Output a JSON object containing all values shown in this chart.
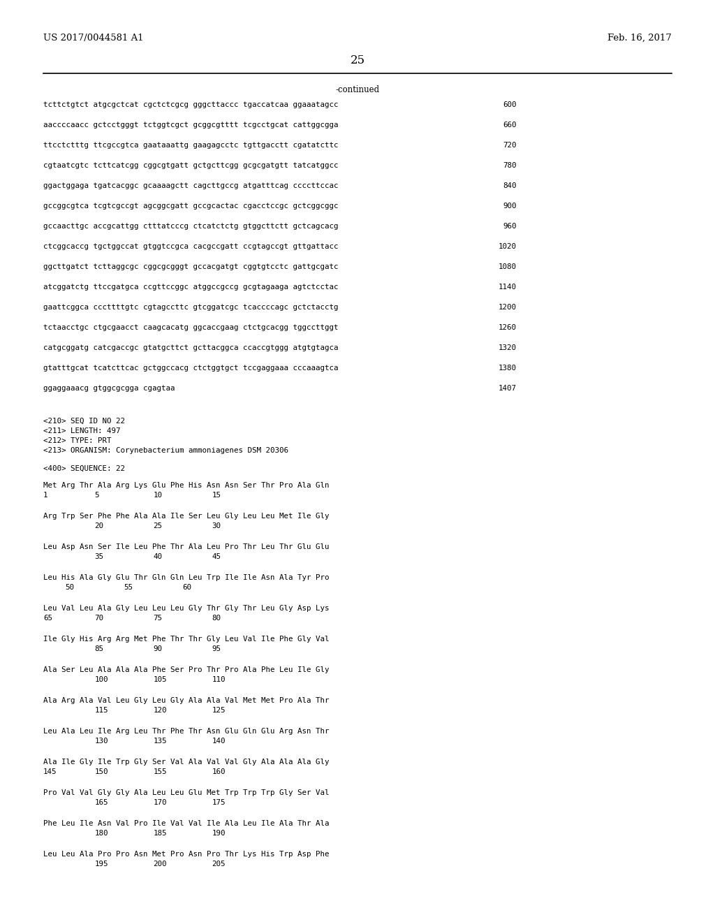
{
  "header_left": "US 2017/0044581 A1",
  "header_right": "Feb. 16, 2017",
  "page_number": "25",
  "continued_label": "-continued",
  "background_color": "#ffffff",
  "text_color": "#000000",
  "dna_lines": [
    [
      "tcttctgtct atgcgctcat cgctctcgcg gggcttaccc tgaccatcaa ggaaatagcc",
      "600"
    ],
    [
      "aaccccaacc gctcctgggt tctggtcgct gcggcgtttt tcgcctgcat cattggcgga",
      "660"
    ],
    [
      "ttcctctttg ttcgccgtca gaataaattg gaagagcctc tgttgacctt cgatatcttc",
      "720"
    ],
    [
      "cgtaatcgtc tcttcatcgg cggcgtgatt gctgcttcgg gcgcgatgtt tatcatggcc",
      "780"
    ],
    [
      "ggactggaga tgatcacggc gcaaaagctt cagcttgccg atgatttcag ccccttccac",
      "840"
    ],
    [
      "gccggcgtca tcgtcgccgt agcggcgatt gccgcactac cgacctccgc gctcggcggc",
      "900"
    ],
    [
      "gccaacttgc accgcattgg ctttatcccg ctcatctctg gtggcttctt gctcagcacg",
      "960"
    ],
    [
      "ctcggcaccg tgctggccat gtggtccgca cacgccgatt ccgtagccgt gttgattacc",
      "1020"
    ],
    [
      "ggcttgatct tcttaggcgc cggcgcgggt gccacgatgt cggtgtcctc gattgcgatc",
      "1080"
    ],
    [
      "atcggatctg ttccgatgca ccgttccggc atggccgccg gcgtagaaga agtctcctac",
      "1140"
    ],
    [
      "gaattcggca cccttttgtc cgtagccttc gtcggatcgc tcaccccagc gctctacctg",
      "1200"
    ],
    [
      "tctaacctgc ctgcgaacct caagcacatg ggcaccgaag ctctgcacgg tggccttggt",
      "1260"
    ],
    [
      "catgcggatg catcgaccgc gtatgcttct gcttacggca ccaccgtggg atgtgtagca",
      "1320"
    ],
    [
      "gtatttgcat tcatcttcac gctggccacg ctctggtgct tccgaggaaa cccaaagtca",
      "1380"
    ],
    [
      "ggaggaaacg gtggcgcgga cgagtaa",
      "1407"
    ]
  ],
  "seq_info": [
    "<210> SEQ ID NO 22",
    "<211> LENGTH: 497",
    "<212> TYPE: PRT",
    "<213> ORGANISM: Corynebacterium ammoniagenes DSM 20306"
  ],
  "seq_label": "<400> SEQUENCE: 22",
  "protein_data": [
    {
      "aa": "Met Arg Thr Ala Arg Lys Glu Phe His Asn Asn Ser Thr Pro Ala Gln",
      "nums": [
        [
          "1",
          0
        ],
        [
          "5",
          14
        ],
        [
          "10",
          30
        ],
        [
          "15",
          46
        ]
      ]
    },
    {
      "aa": "Arg Trp Ser Phe Phe Ala Ala Ile Ser Leu Gly Leu Leu Met Ile Gly",
      "nums": [
        [
          "20",
          14
        ],
        [
          "25",
          30
        ],
        [
          "30",
          46
        ]
      ]
    },
    {
      "aa": "Leu Asp Asn Ser Ile Leu Phe Thr Ala Leu Pro Thr Leu Thr Glu Glu",
      "nums": [
        [
          "35",
          14
        ],
        [
          "40",
          30
        ],
        [
          "45",
          46
        ]
      ]
    },
    {
      "aa": "Leu His Ala Gly Glu Thr Gln Gln Leu Trp Ile Ile Asn Ala Tyr Pro",
      "nums": [
        [
          "50",
          6
        ],
        [
          "55",
          22
        ],
        [
          "60",
          38
        ]
      ]
    },
    {
      "aa": "Leu Val Leu Ala Gly Leu Leu Leu Gly Thr Gly Thr Leu Gly Asp Lys",
      "nums": [
        [
          "65",
          0
        ],
        [
          "70",
          14
        ],
        [
          "75",
          30
        ],
        [
          "80",
          46
        ]
      ]
    },
    {
      "aa": "Ile Gly His Arg Arg Met Phe Thr Thr Gly Leu Val Ile Phe Gly Val",
      "nums": [
        [
          "85",
          14
        ],
        [
          "90",
          30
        ],
        [
          "95",
          46
        ]
      ]
    },
    {
      "aa": "Ala Ser Leu Ala Ala Ala Phe Ser Pro Thr Pro Ala Phe Leu Ile Gly",
      "nums": [
        [
          "100",
          14
        ],
        [
          "105",
          30
        ],
        [
          "110",
          46
        ]
      ]
    },
    {
      "aa": "Ala Arg Ala Val Leu Gly Leu Gly Ala Ala Val Met Met Pro Ala Thr",
      "nums": [
        [
          "115",
          14
        ],
        [
          "120",
          30
        ],
        [
          "125",
          46
        ]
      ]
    },
    {
      "aa": "Leu Ala Leu Ile Arg Leu Thr Phe Thr Asn Glu Gln Glu Arg Asn Thr",
      "nums": [
        [
          "130",
          14
        ],
        [
          "135",
          30
        ],
        [
          "140",
          46
        ]
      ]
    },
    {
      "aa": "Ala Ile Gly Ile Trp Gly Ser Val Ala Val Val Gly Ala Ala Ala Gly",
      "nums": [
        [
          "145",
          0
        ],
        [
          "150",
          14
        ],
        [
          "155",
          30
        ],
        [
          "160",
          46
        ]
      ]
    },
    {
      "aa": "Pro Val Val Gly Gly Ala Leu Leu Glu Met Trp Trp Trp Gly Ser Val",
      "nums": [
        [
          "165",
          14
        ],
        [
          "170",
          30
        ],
        [
          "175",
          46
        ]
      ]
    },
    {
      "aa": "Phe Leu Ile Asn Val Pro Ile Val Val Ile Ala Leu Ile Ala Thr Ala",
      "nums": [
        [
          "180",
          14
        ],
        [
          "185",
          30
        ],
        [
          "190",
          46
        ]
      ]
    },
    {
      "aa": "Leu Leu Ala Pro Pro Asn Met Pro Asn Pro Thr Lys His Trp Asp Phe",
      "nums": [
        [
          "195",
          14
        ],
        [
          "200",
          30
        ],
        [
          "205",
          46
        ]
      ]
    }
  ]
}
